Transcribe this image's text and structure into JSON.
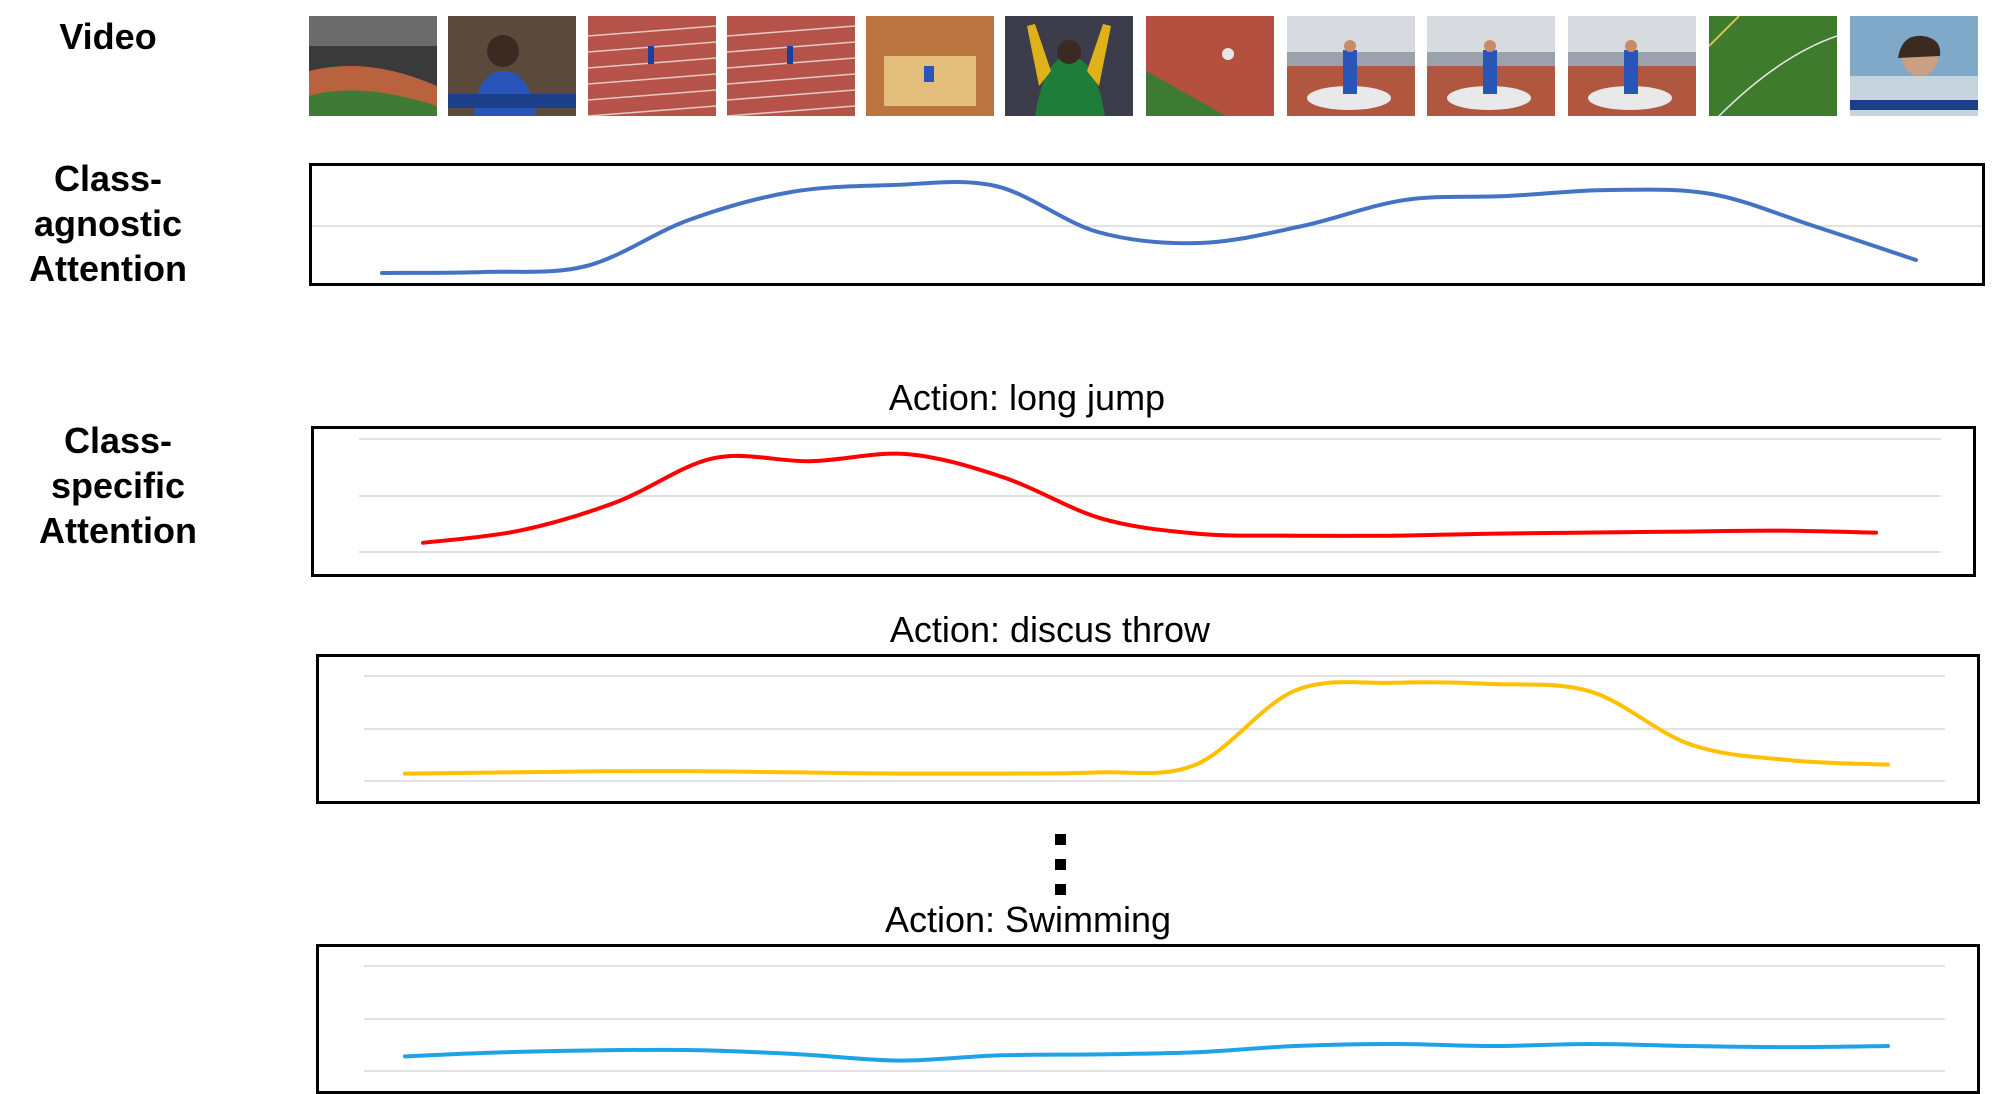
{
  "labels": {
    "video": "Video",
    "class_agnostic": "Class-\nagnostic\nAttention",
    "class_specific": "Class-\nspecific\nAttention"
  },
  "frames": [
    {
      "name": "frame-stadium-track",
      "scene": "stadium"
    },
    {
      "name": "frame-athlete-portrait",
      "scene": "portrait"
    },
    {
      "name": "frame-runway-approach",
      "scene": "track"
    },
    {
      "name": "frame-runway-jump",
      "scene": "track"
    },
    {
      "name": "frame-sandpit-landing",
      "scene": "sand"
    },
    {
      "name": "frame-celebration",
      "scene": "celebration"
    },
    {
      "name": "frame-field-aerial",
      "scene": "aerial"
    },
    {
      "name": "frame-throw-circle-1",
      "scene": "throw"
    },
    {
      "name": "frame-throw-circle-2",
      "scene": "throw"
    },
    {
      "name": "frame-throw-circle-3",
      "scene": "throw"
    },
    {
      "name": "frame-field-overview",
      "scene": "field"
    },
    {
      "name": "frame-athlete-closeup",
      "scene": "closeup"
    }
  ],
  "actions": [
    {
      "title": "Action: long jump"
    },
    {
      "title": "Action: discus throw"
    },
    {
      "title": "Action: Swimming"
    }
  ],
  "colors": {
    "class_agnostic": "#4472C4",
    "long_jump": "#FF0000",
    "discus_throw": "#FFC000",
    "swimming": "#1FA3E8",
    "gridline": "#D9D9D9"
  },
  "chart_data": [
    {
      "type": "line",
      "series": [
        {
          "values": [
            0.05,
            0.06,
            0.12,
            0.58,
            0.86,
            0.93,
            0.92,
            0.46,
            0.35,
            0.52,
            0.78,
            0.82,
            0.88,
            0.84,
            0.52,
            0.18
          ]
        }
      ],
      "ylim": [
        0,
        1
      ],
      "grid": true
    },
    {
      "type": "line",
      "series": [
        {
          "values": [
            0.08,
            0.2,
            0.48,
            0.91,
            0.88,
            0.95,
            0.72,
            0.32,
            0.17,
            0.15,
            0.15,
            0.17,
            0.18,
            0.19,
            0.2,
            0.18
          ]
        }
      ],
      "ylim": [
        0,
        1
      ],
      "grid": true
    },
    {
      "type": "line",
      "series": [
        {
          "values": [
            0.12,
            0.13,
            0.14,
            0.14,
            0.13,
            0.12,
            0.12,
            0.13,
            0.2,
            0.86,
            0.93,
            0.92,
            0.85,
            0.38,
            0.24,
            0.2
          ]
        }
      ],
      "ylim": [
        0,
        1
      ],
      "grid": true
    },
    {
      "type": "line",
      "series": [
        {
          "values": [
            0.14,
            0.18,
            0.2,
            0.2,
            0.16,
            0.1,
            0.15,
            0.16,
            0.18,
            0.24,
            0.26,
            0.24,
            0.26,
            0.24,
            0.23,
            0.24
          ]
        }
      ],
      "ylim": [
        0,
        1
      ],
      "grid": true
    }
  ]
}
